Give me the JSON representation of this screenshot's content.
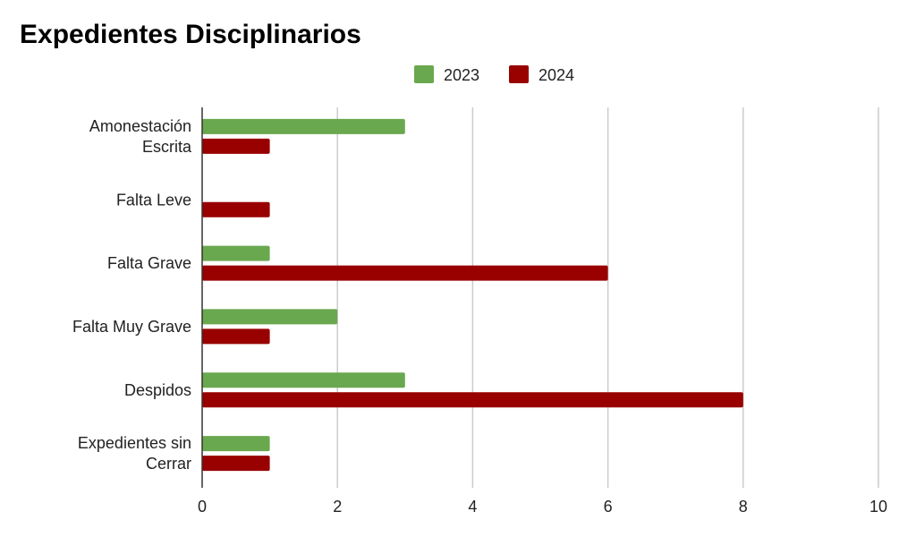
{
  "chart_data": {
    "type": "bar",
    "orientation": "horizontal",
    "title": "Expedientes Disciplinarios",
    "categories": [
      [
        "Amonestación",
        "Escrita"
      ],
      [
        "Falta Leve"
      ],
      [
        "Falta Grave"
      ],
      [
        "Falta Muy Grave"
      ],
      [
        "Despidos"
      ],
      [
        "Expedientes sin",
        "Cerrar"
      ]
    ],
    "series": [
      {
        "name": "2023",
        "color": "#6aa84f",
        "values": [
          3,
          0,
          1,
          2,
          3,
          1
        ]
      },
      {
        "name": "2024",
        "color": "#990000",
        "values": [
          1,
          1,
          6,
          1,
          8,
          1
        ]
      }
    ],
    "xlim": [
      0,
      10
    ],
    "xticks": [
      0,
      2,
      4,
      6,
      8,
      10
    ],
    "grid": true,
    "legend_position": "top-center"
  }
}
